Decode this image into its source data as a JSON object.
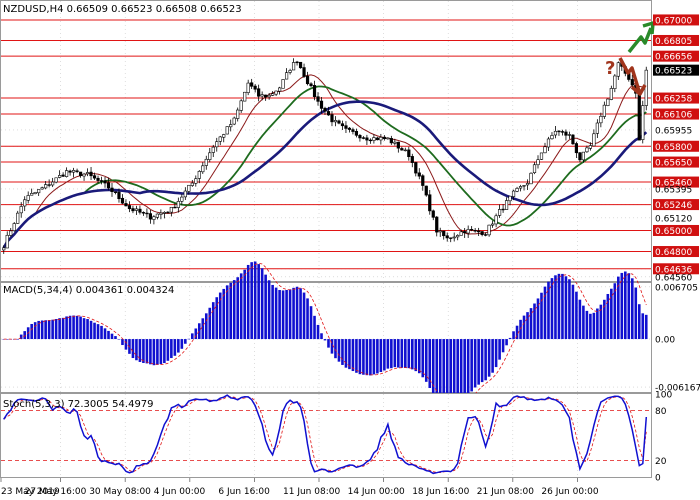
{
  "chart_data": {
    "type": "candlestick",
    "symbol_header": "NZDUSD,H4  0.66509 0.66523 0.66508 0.66523",
    "current_price": "0.66523",
    "ylim": [
      0.6452,
      0.6718
    ],
    "price_ticks": [
      {
        "label": "0.67000",
        "value": 0.67,
        "highlight": true
      },
      {
        "label": "0.66805",
        "value": 0.66805,
        "highlight": true
      },
      {
        "label": "0.66656",
        "value": 0.66656,
        "highlight": true
      },
      {
        "label": "0.66523",
        "value": 0.66523,
        "current": true
      },
      {
        "label": "0.66258",
        "value": 0.66258,
        "highlight": true
      },
      {
        "label": "0.66106",
        "value": 0.66106,
        "highlight": true
      },
      {
        "label": "0.65955",
        "value": 0.65955,
        "highlight": false
      },
      {
        "label": "0.65800",
        "value": 0.658,
        "highlight": true
      },
      {
        "label": "0.65650",
        "value": 0.6565,
        "highlight": true
      },
      {
        "label": "0.65460",
        "value": 0.6546,
        "highlight": true
      },
      {
        "label": "0.65395",
        "value": 0.65395,
        "highlight": false
      },
      {
        "label": "0.65246",
        "value": 0.65246,
        "highlight": true
      },
      {
        "label": "0.65120",
        "value": 0.6512,
        "highlight": false
      },
      {
        "label": "0.65000",
        "value": 0.65,
        "highlight": true
      },
      {
        "label": "0.64800",
        "value": 0.648,
        "highlight": true
      },
      {
        "label": "0.64636",
        "value": 0.64636,
        "highlight": true
      },
      {
        "label": "0.64560",
        "value": 0.6456,
        "highlight": false
      }
    ],
    "levels": [
      0.67,
      0.66805,
      0.66656,
      0.66258,
      0.66106,
      0.658,
      0.6565,
      0.6546,
      0.65246,
      0.65,
      0.648,
      0.64636
    ],
    "time_labels": [
      "23 May 2019",
      "27 May 16:00",
      "30 May 08:00",
      "4 Jun 00:00",
      "6 Jun 16:00",
      "11 Jun 08:00",
      "14 Jun 00:00",
      "18 Jun 16:00",
      "21 Jun 08:00",
      "26 Jun 00:00"
    ],
    "close_anchors": [
      [
        0,
        0.6486
      ],
      [
        6,
        0.653
      ],
      [
        12,
        0.6542
      ],
      [
        18,
        0.6556
      ],
      [
        24,
        0.6553
      ],
      [
        30,
        0.6541
      ],
      [
        36,
        0.6521
      ],
      [
        42,
        0.6513
      ],
      [
        48,
        0.652
      ],
      [
        54,
        0.6545
      ],
      [
        60,
        0.658
      ],
      [
        66,
        0.6605
      ],
      [
        70,
        0.664
      ],
      [
        73,
        0.6628
      ],
      [
        76,
        0.6628
      ],
      [
        79,
        0.6636
      ],
      [
        82,
        0.6654
      ],
      [
        84,
        0.6662
      ],
      [
        86,
        0.6648
      ],
      [
        90,
        0.6622
      ],
      [
        94,
        0.6605
      ],
      [
        98,
        0.6595
      ],
      [
        104,
        0.6588
      ],
      [
        110,
        0.6587
      ],
      [
        116,
        0.6572
      ],
      [
        120,
        0.6542
      ],
      [
        124,
        0.65
      ],
      [
        127,
        0.6492
      ],
      [
        132,
        0.65
      ],
      [
        138,
        0.6498
      ],
      [
        142,
        0.6518
      ],
      [
        146,
        0.6535
      ],
      [
        150,
        0.6546
      ],
      [
        154,
        0.6575
      ],
      [
        158,
        0.6595
      ],
      [
        162,
        0.659
      ],
      [
        165,
        0.6568
      ],
      [
        168,
        0.658
      ],
      [
        171,
        0.661
      ],
      [
        174,
        0.6635
      ],
      [
        176,
        0.6658
      ],
      [
        179,
        0.6645
      ],
      [
        181,
        0.6632
      ],
      [
        182,
        0.6585
      ],
      [
        184,
        0.6652
      ]
    ],
    "indicators": {
      "macd": {
        "label": "MACD(5,34,4) 0.004361 0.004324",
        "ticks": [
          "0.006705",
          "0.00",
          "-0.006167"
        ],
        "range": [
          -0.0068,
          0.0072
        ]
      },
      "stochastic": {
        "label": "Stoch(5,3,3) 72.3005 54.4979",
        "ticks": [
          "100",
          "80",
          "20",
          "0"
        ],
        "levels": [
          80,
          20
        ]
      }
    },
    "moving_averages": [
      {
        "period": 10,
        "color": "#8b1a1a"
      },
      {
        "period": 24,
        "color": "#1e6b1e"
      },
      {
        "period": 40,
        "color": "#1a1a7a"
      }
    ]
  },
  "colors": {
    "grid": "#c8c8c8",
    "level_line": "#e01414",
    "level_label_bg": "#d01010",
    "current_label_bg": "#000000",
    "candle": "#000000",
    "macd_bar": "#1010d0",
    "macd_signal": "#e01414",
    "stoch_main": "#1010d0",
    "stoch_signal": "#e01414",
    "arrow_up": "#2a8a2a",
    "arrow_down": "#a0341c"
  },
  "icons": {
    "up_arrow": "arrow-up-icon",
    "down_arrow": "arrow-down-icon",
    "question": "question-icon"
  },
  "question_glyph": "?"
}
